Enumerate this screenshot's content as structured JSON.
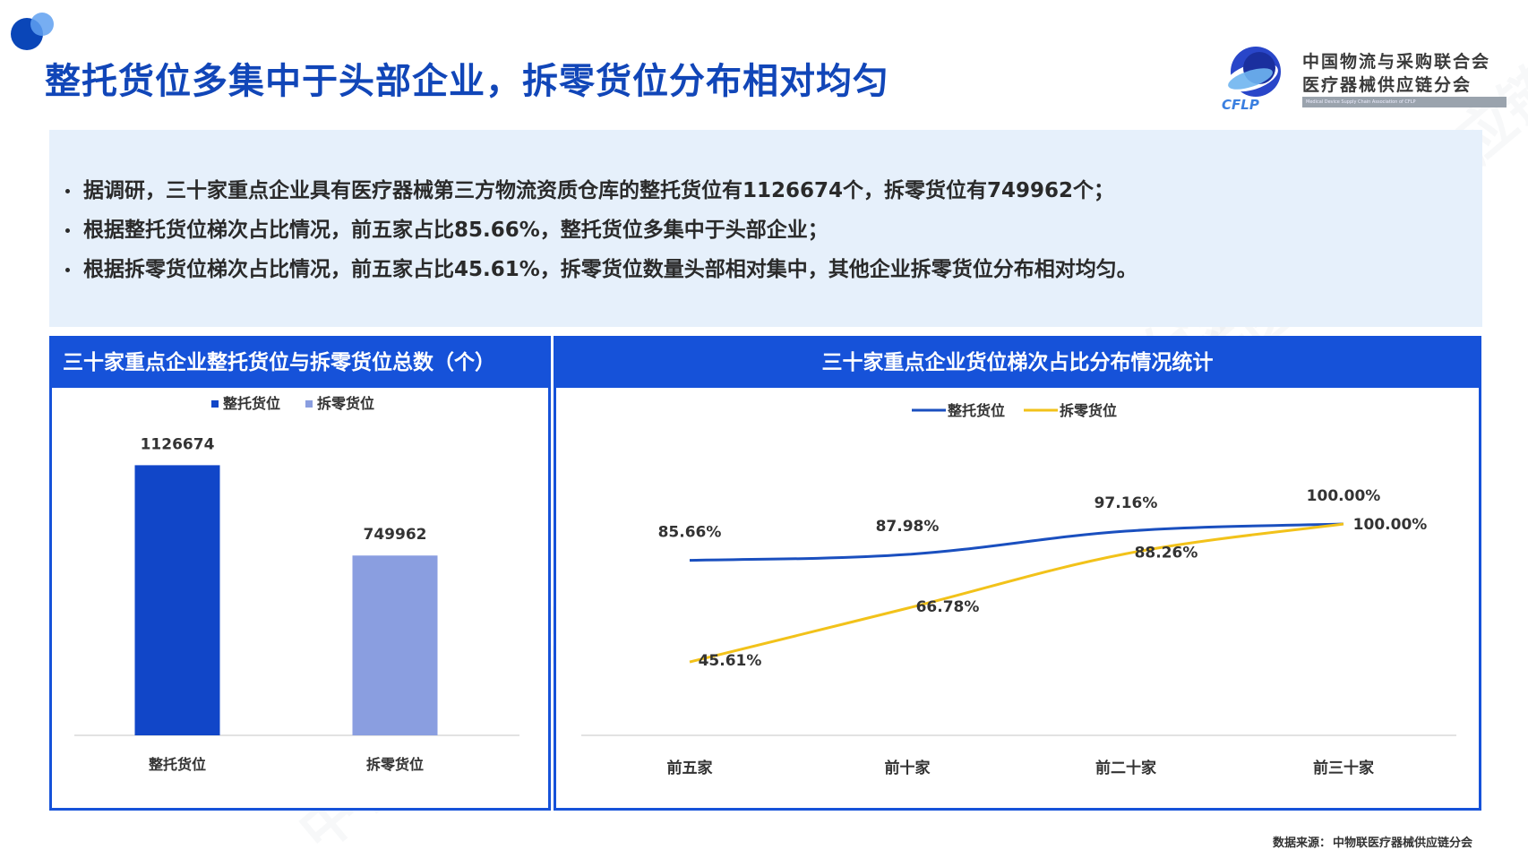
{
  "header": {
    "title": "整托货位多集中于头部企业，拆零货位分布相对均匀"
  },
  "logo": {
    "org_line1": "中国物流与采购联合会",
    "org_line2": "医疗器械供应链分会",
    "brand": "CFLP",
    "org_en": "Medical Device Supply Chain Association of CFLP"
  },
  "summary": {
    "bullets": [
      "据调研，三十家重点企业具有医疗器械第三方物流资质仓库的整托货位有1126674个，拆零货位有749962个；",
      "根据整托货位梯次占比情况，前五家占比85.66%，整托货位多集中于头部企业；",
      "根据拆零货位梯次占比情况，前五家占比45.61%，拆零货位数量头部相对集中，其他企业拆零货位分布相对均匀。"
    ]
  },
  "left_panel": {
    "title": "三十家重点企业整托货位与拆零货位总数（个）"
  },
  "right_panel": {
    "title": "三十家重点企业货位梯次占比分布情况统计"
  },
  "chart_data": [
    {
      "type": "bar",
      "title": "三十家重点企业整托货位与拆零货位总数（个）",
      "categories": [
        "整托货位",
        "拆零货位"
      ],
      "values": [
        1126674,
        749962
      ],
      "value_labels": [
        "1126674",
        "749962"
      ],
      "legend": [
        "整托货位",
        "拆零货位"
      ],
      "legend_position": "top",
      "colors": [
        "#1146c8",
        "#8a9ee0"
      ],
      "ylim": [
        0,
        1300000
      ],
      "grid": false
    },
    {
      "type": "line",
      "title": "三十家重点企业货位梯次占比分布情况统计",
      "categories": [
        "前五家",
        "前十家",
        "前二十家",
        "前三十家"
      ],
      "series": [
        {
          "name": "整托货位",
          "values": [
            85.66,
            87.98,
            97.16,
            100.0
          ],
          "labels": [
            "85.66%",
            "87.98%",
            "97.16%",
            "100.00%"
          ],
          "color": "#1a4fbf"
        },
        {
          "name": "拆零货位",
          "values": [
            45.61,
            66.78,
            88.26,
            100.0
          ],
          "labels": [
            "45.61%",
            "66.78%",
            "88.26%",
            "100.00%"
          ],
          "color": "#f2c21a"
        }
      ],
      "legend_position": "top",
      "ylim": [
        0,
        110
      ],
      "grid": false
    }
  ],
  "footer": {
    "source_label": "数据来源：",
    "source_value": "中物联医疗器械供应链分会"
  },
  "watermark": "中物联医疗器械供应链分会"
}
